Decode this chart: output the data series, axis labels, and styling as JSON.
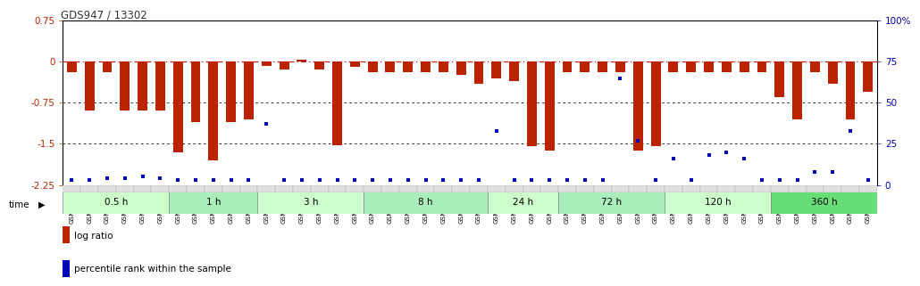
{
  "title": "GDS947 / 13302",
  "samples": [
    "GSM22716",
    "GSM22717",
    "GSM22718",
    "GSM22719",
    "GSM22720",
    "GSM22721",
    "GSM22722",
    "GSM22723",
    "GSM22724",
    "GSM22725",
    "GSM22726",
    "GSM22727",
    "GSM22728",
    "GSM22729",
    "GSM22730",
    "GSM22731",
    "GSM22732",
    "GSM22733",
    "GSM22734",
    "GSM22735",
    "GSM22736",
    "GSM22737",
    "GSM22738",
    "GSM22739",
    "GSM22740",
    "GSM22741",
    "GSM22742",
    "GSM22743",
    "GSM22744",
    "GSM22745",
    "GSM22746",
    "GSM22747",
    "GSM22748",
    "GSM22749",
    "GSM22750",
    "GSM22751",
    "GSM22752",
    "GSM22753",
    "GSM22754",
    "GSM22755",
    "GSM22756",
    "GSM22757",
    "GSM22758",
    "GSM22759",
    "GSM22760",
    "GSM22761"
  ],
  "log_ratio": [
    -0.2,
    -0.9,
    -0.2,
    -0.9,
    -0.9,
    -0.9,
    -1.65,
    -1.1,
    -1.8,
    -1.1,
    -1.05,
    -0.08,
    -0.15,
    0.04,
    -0.15,
    -1.52,
    -0.1,
    -0.2,
    -0.2,
    -0.2,
    -0.2,
    -0.2,
    -0.25,
    -0.4,
    -0.3,
    -0.35,
    -1.55,
    -1.62,
    -0.2,
    -0.2,
    -0.2,
    -0.2,
    -1.62,
    -1.55,
    -0.2,
    -0.2,
    -0.2,
    -0.2,
    -0.2,
    -0.2,
    -0.65,
    -1.05,
    -0.2,
    -0.4,
    -1.05,
    -0.55
  ],
  "percentile": [
    3,
    3,
    4,
    4,
    5,
    4,
    3,
    3,
    3,
    3,
    3,
    37,
    3,
    3,
    3,
    3,
    3,
    3,
    3,
    3,
    3,
    3,
    3,
    3,
    33,
    3,
    3,
    3,
    3,
    3,
    3,
    65,
    27,
    3,
    16,
    3,
    18,
    20,
    16,
    3,
    3,
    3,
    8,
    8,
    33,
    3
  ],
  "time_groups": [
    {
      "label": "0.5 h",
      "start": 0,
      "end": 6,
      "color": "#ccffcc"
    },
    {
      "label": "1 h",
      "start": 6,
      "end": 11,
      "color": "#aaeebb"
    },
    {
      "label": "3 h",
      "start": 11,
      "end": 17,
      "color": "#ccffcc"
    },
    {
      "label": "8 h",
      "start": 17,
      "end": 24,
      "color": "#aaeebb"
    },
    {
      "label": "24 h",
      "start": 24,
      "end": 28,
      "color": "#ccffcc"
    },
    {
      "label": "72 h",
      "start": 28,
      "end": 34,
      "color": "#aaeebb"
    },
    {
      "label": "120 h",
      "start": 34,
      "end": 40,
      "color": "#ccffcc"
    },
    {
      "label": "360 h",
      "start": 40,
      "end": 46,
      "color": "#66dd77"
    }
  ],
  "ylim": [
    -2.25,
    0.75
  ],
  "yticks_left": [
    0.75,
    0.0,
    -0.75,
    -1.5,
    -2.25
  ],
  "yticks_right_pct": [
    100,
    75,
    50,
    25,
    0
  ],
  "bar_color": "#bb2200",
  "scatter_color": "#0000bb",
  "bg_color": "#ffffff"
}
